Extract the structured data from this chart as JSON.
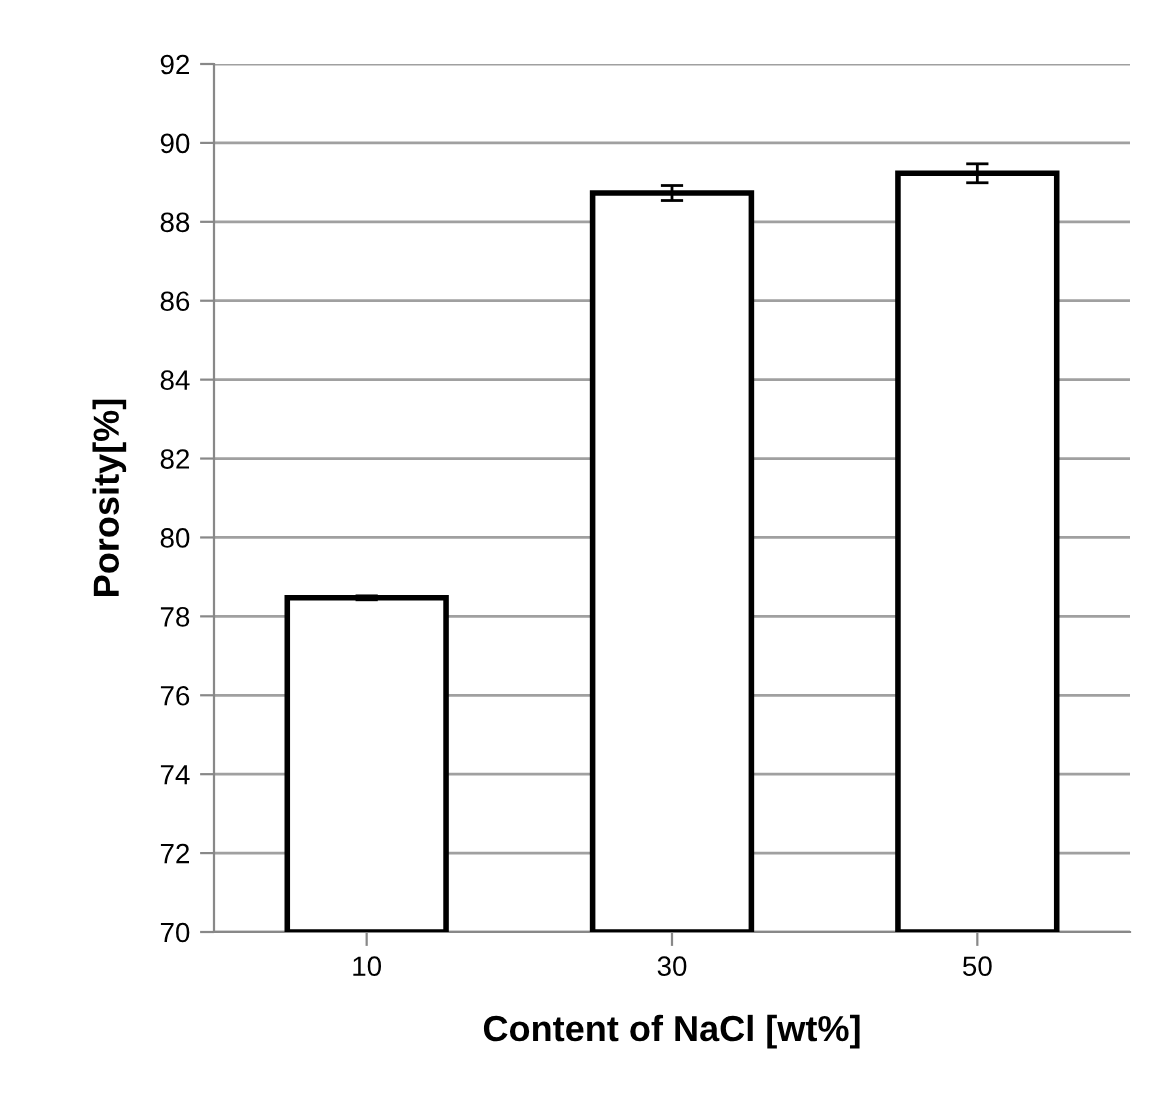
{
  "chart_data": {
    "type": "bar",
    "xlabel": "Content of NaCl [wt%]",
    "ylabel": "Porosity[%]",
    "categories": [
      "10",
      "30",
      "50"
    ],
    "values": [
      78.47,
      88.73,
      89.23
    ],
    "errors": [
      0.05,
      0.19,
      0.24
    ],
    "color": "#ffffff",
    "ylim": [
      70,
      92
    ],
    "yticks": [
      70,
      72,
      74,
      76,
      78,
      80,
      82,
      84,
      86,
      88,
      90,
      92
    ],
    "grid": "y"
  }
}
